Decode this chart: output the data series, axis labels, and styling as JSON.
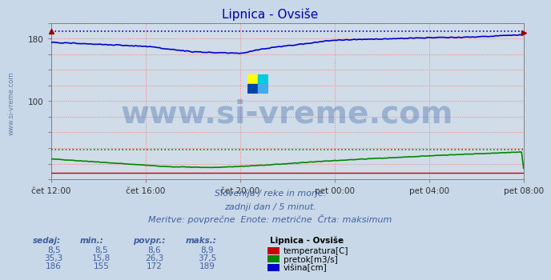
{
  "title": "Lipnica - Ovsiše",
  "title_color": "#0000aa",
  "bg_color": "#c8d8e8",
  "plot_bg_color": "#d0dce8",
  "grid_color_h": "#f08080",
  "grid_color_v": "#d0a0a0",
  "ylim": [
    0,
    200
  ],
  "ytick_vals": [
    0,
    20,
    40,
    60,
    80,
    100,
    120,
    140,
    160,
    180,
    200
  ],
  "ytick_labels": [
    "",
    "",
    "",
    "",
    "",
    "100",
    "",
    "",
    "",
    "180",
    ""
  ],
  "xlabel_times": [
    "čet 12:00",
    "čet 16:00",
    "čet 20:00",
    "pet 00:00",
    "pet 04:00",
    "pet 08:00"
  ],
  "x_ticks": [
    0,
    240,
    480,
    720,
    960,
    1200
  ],
  "x_end": 1200,
  "visina_max": 189,
  "pretok_max": 37.5,
  "temp_val": 8.5,
  "visina_color": "#0000cc",
  "pretok_color": "#008800",
  "temp_color": "#cc0000",
  "max_line_color_blue": "#0000cc",
  "max_line_color_green": "#008800",
  "watermark_text": "www.si-vreme.com",
  "watermark_color": "#2050a0",
  "watermark_alpha": 0.3,
  "watermark_fontsize": 28,
  "subtitle1": "Slovenija / reke in morje.",
  "subtitle2": "zadnji dan / 5 minut.",
  "subtitle3": "Meritve: povprečne  Enote: metrične  Črta: maksimum",
  "sub_color": "#4060a0",
  "sub_fontsize": 8,
  "legend_title": "Lipnica - Ovsiše",
  "legend_items": [
    "temperatura[C]",
    "pretok[m3/s]",
    "višina[cm]"
  ],
  "legend_colors": [
    "#cc0000",
    "#008800",
    "#0000cc"
  ],
  "table_headers": [
    "sedaj:",
    "min.:",
    "povpr.:",
    "maks.:"
  ],
  "table_rows": [
    [
      "8,5",
      "8,5",
      "8,6",
      "8,9"
    ],
    [
      "35,3",
      "15,8",
      "26,3",
      "37,5"
    ],
    [
      "186",
      "155",
      "172",
      "189"
    ]
  ],
  "table_color": "#4060a0",
  "ylabel_rotation_text": "www.si-vreme.com",
  "ylabel_text_color": "#6080a0",
  "tick_fontsize": 7.5,
  "logo_colors": [
    "#ffff00",
    "#00ccdd",
    "#00aaee",
    "#000080"
  ]
}
